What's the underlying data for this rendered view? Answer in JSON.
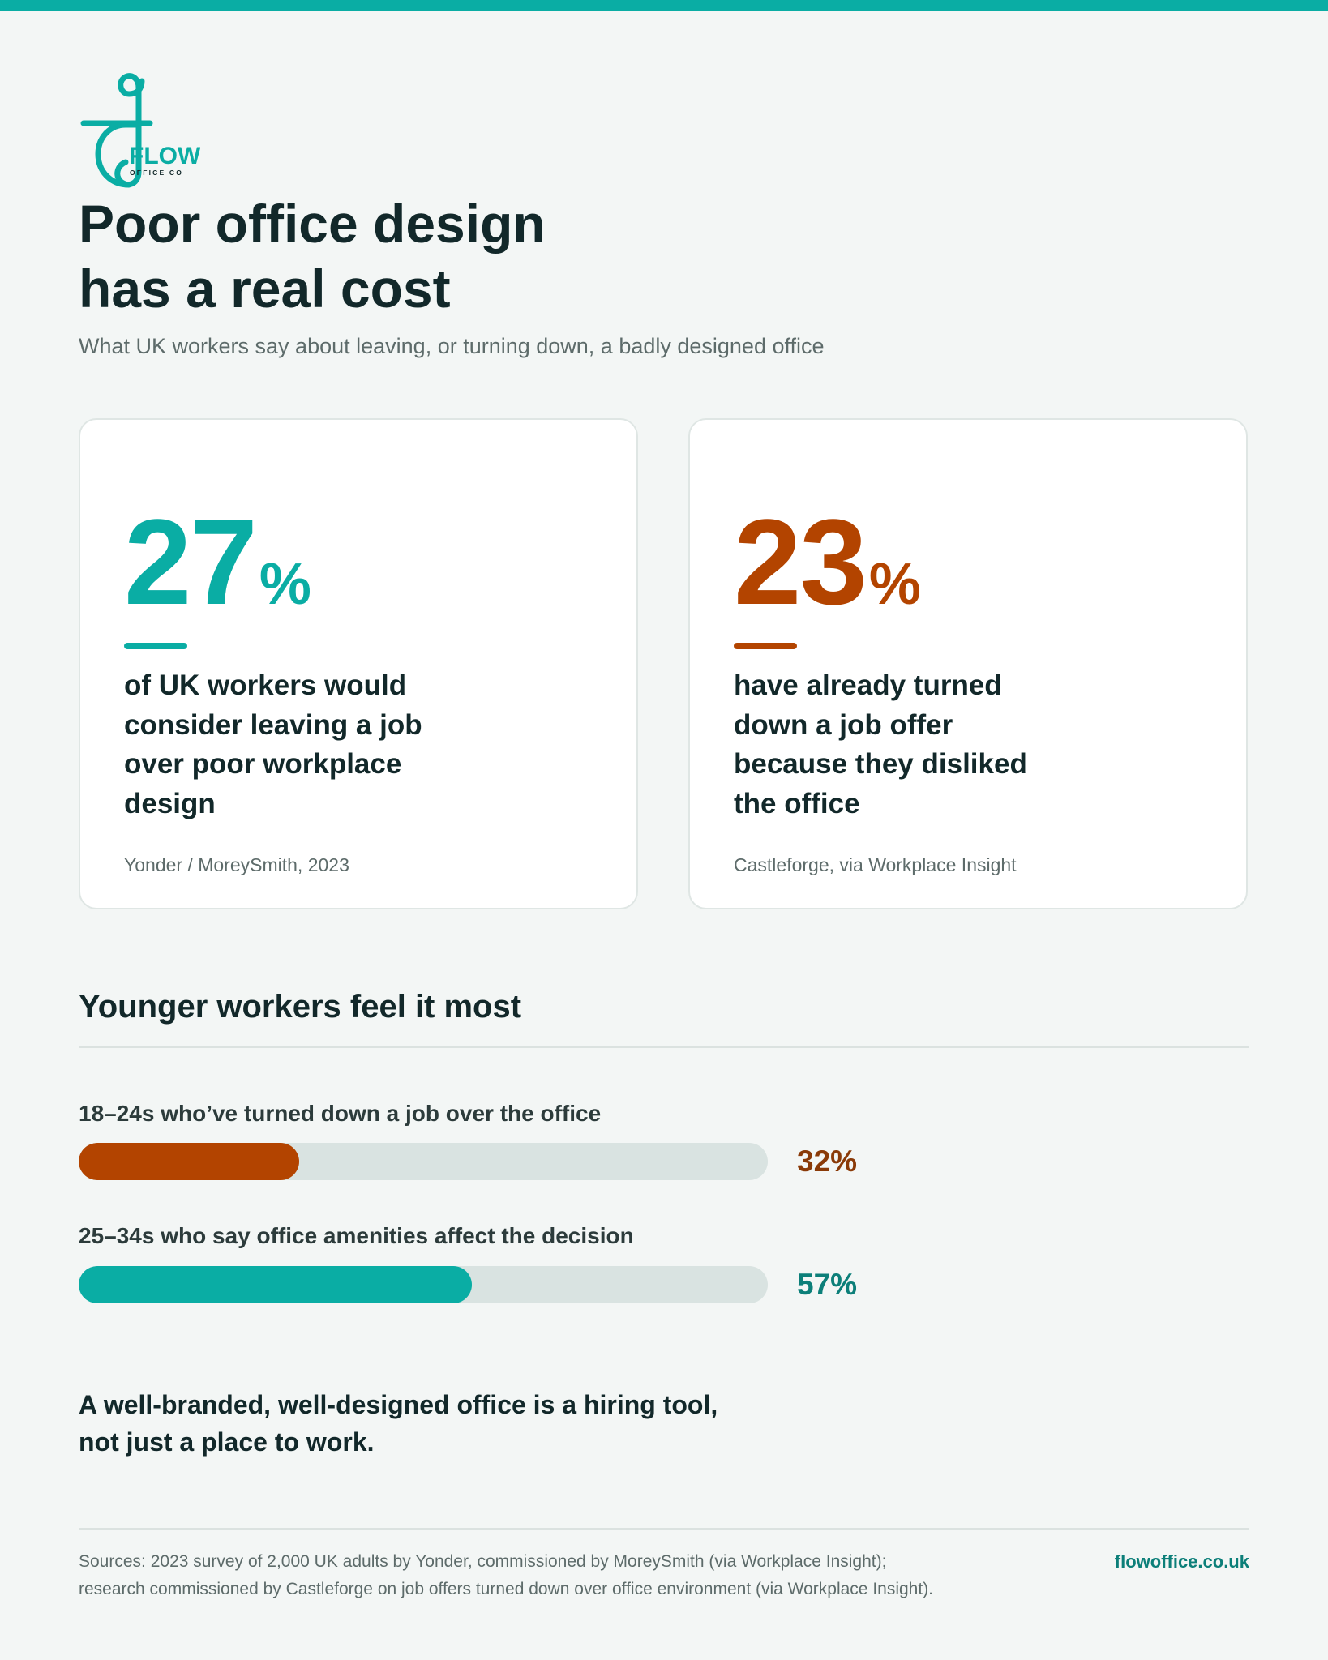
{
  "brand": {
    "logo_word": "FLOW",
    "logo_sub": "OFFICE CO",
    "website": "flowoffice.co.uk",
    "teal": "#0aada4",
    "rust": "#b34400",
    "dark": "#12282a"
  },
  "header": {
    "title_line1": "Poor office design",
    "title_line2": "has a real cost",
    "subtitle": "What UK workers say about leaving, or turning down, a badly designed office"
  },
  "stats": [
    {
      "value": "27",
      "unit": "%",
      "text": "of UK workers would consider leaving a job over poor workplace design",
      "source": "Yonder / MoreySmith, 2023",
      "color": "#0aada4"
    },
    {
      "value": "23",
      "unit": "%",
      "text": "have already turned down a job offer because they disliked the office",
      "source": "Castleforge, via Workplace Insight",
      "color": "#b34400"
    }
  ],
  "section": {
    "title": "Younger workers feel it most"
  },
  "bars": [
    {
      "label": "18–24s who’ve turned down a job over the office",
      "value": 32,
      "display": "32%",
      "color": "#b34400",
      "text_color": "#8a3a08"
    },
    {
      "label": "25–34s who say office amenities affect the decision",
      "value": 57,
      "display": "57%",
      "color": "#0aada4",
      "text_color": "#0c7f79"
    }
  ],
  "tagline": {
    "line1": "A well-branded, well-designed office is a hiring tool,",
    "line2": "not just a place to work."
  },
  "footer": {
    "sources_line1": "Sources: 2023 survey of 2,000 UK adults by Yonder, commissioned by MoreySmith (via Workplace Insight);",
    "sources_line2": "research commissioned by Castleforge on job offers turned down over office environment (via Workplace Insight)."
  }
}
